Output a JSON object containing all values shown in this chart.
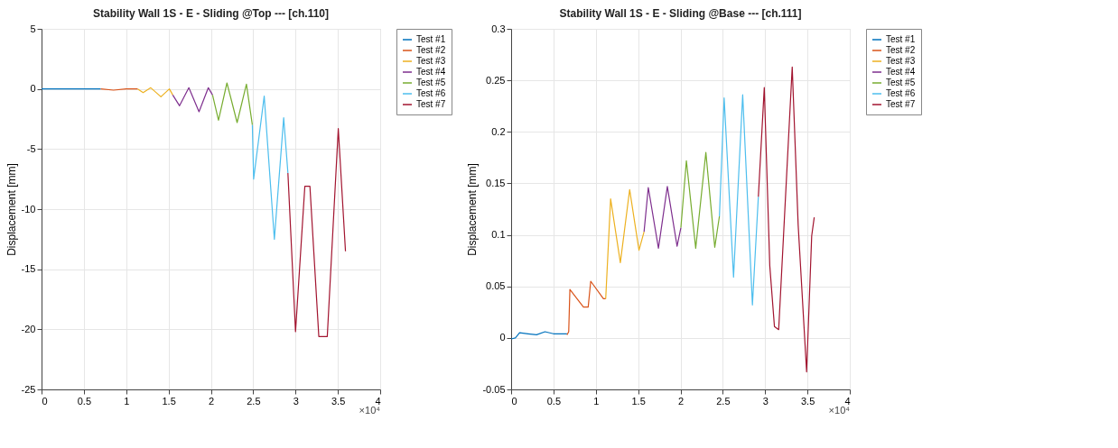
{
  "chart_data": [
    {
      "type": "line",
      "title": "Stability Wall 1S - E - Sliding @Top ---  [ch.110]",
      "ylabel": "Displacement [mm]",
      "xlim": [
        0,
        4
      ],
      "xticks": [
        0,
        0.5,
        1,
        1.5,
        2,
        2.5,
        3,
        3.5,
        4
      ],
      "ylim": [
        -25,
        5
      ],
      "yticks": [
        -25,
        -20,
        -15,
        -10,
        -5,
        0,
        5
      ],
      "grid": true,
      "legend": "right",
      "annotations": [
        "×10⁴"
      ],
      "series": [
        {
          "name": "Test #1",
          "color": "#0072bd",
          "x": [
            0,
            0.2,
            0.4,
            0.6,
            0.7
          ],
          "values": [
            0,
            0,
            0,
            0,
            0
          ]
        },
        {
          "name": "Test #2",
          "color": "#d95319",
          "x": [
            0.7,
            0.85,
            1.0,
            1.136
          ],
          "values": [
            0,
            -0.1,
            0,
            0
          ]
        },
        {
          "name": "Test #3",
          "color": "#edb120",
          "x": [
            1.136,
            1.2,
            1.29,
            1.41,
            1.51,
            1.55
          ],
          "values": [
            0,
            -0.3,
            0.1,
            -0.65,
            0,
            -0.5
          ]
        },
        {
          "name": "Test #4",
          "color": "#7e2f8e",
          "x": [
            1.55,
            1.63,
            1.74,
            1.86,
            1.97,
            2.02
          ],
          "values": [
            -0.5,
            -1.4,
            0.1,
            -1.9,
            0.1,
            -0.5
          ]
        },
        {
          "name": "Test #5",
          "color": "#77ac30",
          "x": [
            2.02,
            2.09,
            2.19,
            2.31,
            2.42,
            2.49
          ],
          "values": [
            -0.5,
            -2.6,
            0.5,
            -2.8,
            0.4,
            -3
          ]
        },
        {
          "name": "Test #6",
          "color": "#4dbeee",
          "x": [
            2.49,
            2.505,
            2.63,
            2.75,
            2.86,
            2.91
          ],
          "values": [
            -3,
            -7.5,
            -0.6,
            -12.5,
            -2.4,
            -7
          ]
        },
        {
          "name": "Test #7",
          "color": "#a2142f",
          "x": [
            2.91,
            3.0,
            3.11,
            3.17,
            3.275,
            3.375,
            3.505,
            3.59
          ],
          "values": [
            -7,
            -20.2,
            -8.1,
            -8.1,
            -20.6,
            -20.6,
            -3.3,
            -13.5
          ]
        }
      ]
    },
    {
      "type": "line",
      "title": "Stability Wall 1S - E - Sliding @Base ---  [ch.111]",
      "ylabel": "Displacement [mm]",
      "xlim": [
        0,
        4
      ],
      "xticks": [
        0,
        0.5,
        1,
        1.5,
        2,
        2.5,
        3,
        3.5,
        4
      ],
      "ylim": [
        -0.05,
        0.3
      ],
      "yticks": [
        -0.05,
        0,
        0.05,
        0.1,
        0.15,
        0.2,
        0.25,
        0.3
      ],
      "grid": true,
      "legend": "right",
      "annotations": [
        "×10⁴"
      ],
      "series": [
        {
          "name": "Test #1",
          "color": "#0072bd",
          "x": [
            0,
            0.05,
            0.1,
            0.2,
            0.3,
            0.4,
            0.5,
            0.6,
            0.66
          ],
          "values": [
            -0.001,
            0.0,
            0.005,
            0.004,
            0.003,
            0.006,
            0.004,
            0.004,
            0.004
          ]
        },
        {
          "name": "Test #2",
          "color": "#d95319",
          "x": [
            0.66,
            0.68,
            0.694,
            0.854,
            0.91,
            0.94,
            1.09,
            1.117
          ],
          "values": [
            0.003,
            0.006,
            0.047,
            0.03,
            0.03,
            0.055,
            0.038,
            0.038
          ]
        },
        {
          "name": "Test #3",
          "color": "#edb120",
          "x": [
            1.117,
            1.175,
            1.29,
            1.4,
            1.51,
            1.57
          ],
          "values": [
            0.038,
            0.135,
            0.073,
            0.144,
            0.085,
            0.103
          ]
        },
        {
          "name": "Test #4",
          "color": "#7e2f8e",
          "x": [
            1.57,
            1.62,
            1.74,
            1.845,
            1.96,
            2.005
          ],
          "values": [
            0.103,
            0.146,
            0.087,
            0.147,
            0.089,
            0.107
          ]
        },
        {
          "name": "Test #5",
          "color": "#77ac30",
          "x": [
            2.005,
            2.07,
            2.18,
            2.3,
            2.405,
            2.46
          ],
          "values": [
            0.107,
            0.172,
            0.087,
            0.18,
            0.088,
            0.118
          ]
        },
        {
          "name": "Test #6",
          "color": "#4dbeee",
          "x": [
            2.46,
            2.516,
            2.627,
            2.735,
            2.85,
            2.92
          ],
          "values": [
            0.118,
            0.233,
            0.059,
            0.236,
            0.032,
            0.137
          ]
        },
        {
          "name": "Test #7",
          "color": "#a2142f",
          "x": [
            2.92,
            2.99,
            3.055,
            3.11,
            3.16,
            3.32,
            3.39,
            3.49,
            3.55,
            3.58
          ],
          "values": [
            0.137,
            0.243,
            0.07,
            0.011,
            0.008,
            0.263,
            0.11,
            -0.033,
            0.099,
            0.117
          ]
        }
      ]
    }
  ]
}
